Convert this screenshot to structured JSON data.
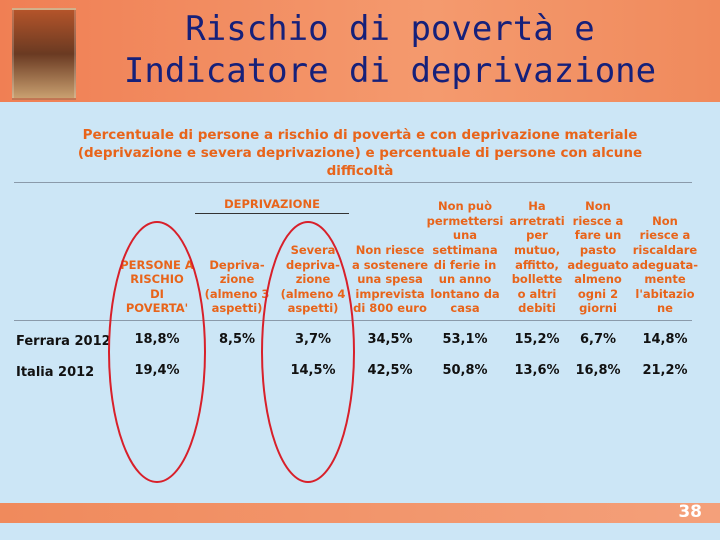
{
  "header": {
    "title": "Rischio di povertà e\nIndicatore di deprivazione"
  },
  "subtitle": "Percentuale di persone a rischio di povertà e con deprivazione materiale\n(deprivazione e severa deprivazione) e percentuale di persone con alcune\ndifficoltà",
  "table": {
    "group_header": "DEPRIVAZIONE",
    "columns": [
      "PERSONE A\nRISCHIO\nDI\nPOVERTA'",
      "Depriva-\nzione\n(almeno 3\naspetti)",
      "Severa\ndepriva-\nzione\n(almeno 4\naspetti)",
      "Non riesce\na sostenere\nuna spesa\nimprevista\ndi 800 euro",
      "Non può\npermettersi\nuna\nsettimana\ndi ferie in\nun anno\nlontano da\ncasa",
      "Ha\narretrati\nper\nmutuo,\naffitto,\nbollette\no altri\ndebiti",
      "Non\nriesce a\nfare un\npasto\nadeguato\nalmeno\nogni 2\ngiorni",
      "Non\nriesce a\nriscaldare\nadeguata-\nmente\nl'abitazio\nne"
    ],
    "rows": [
      {
        "label": "Ferrara 2012",
        "cells": [
          "18,8%",
          "8,5%",
          "3,7%",
          "34,5%",
          "53,1%",
          "15,2%",
          "6,7%",
          "14,8%"
        ]
      },
      {
        "label": "Italia 2012",
        "cells": [
          "19,4%",
          null,
          "14,5%",
          "42,5%",
          "50,8%",
          "13,6%",
          "16,8%",
          "21,2%"
        ]
      }
    ]
  },
  "page_number": "38"
}
